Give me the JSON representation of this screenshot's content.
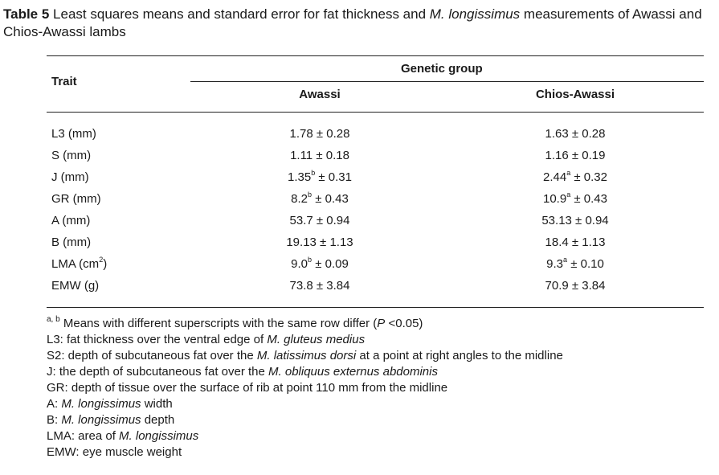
{
  "caption": {
    "label": "Table 5",
    "text_before": " Least squares means and standard error for fat thickness and ",
    "italic": "M. longissimus",
    "text_after": " measurements of Awassi and Chios-Awassi lambs"
  },
  "table": {
    "header_trait": "Trait",
    "header_group": "Genetic group",
    "columns": [
      "Awassi",
      "Chios-Awassi"
    ],
    "rows": [
      {
        "trait": "L3 (mm)",
        "awassi": {
          "mean": "1.78",
          "sup": "",
          "se": " ± 0.28"
        },
        "chios": {
          "mean": "1.63",
          "sup": "",
          "se": " ± 0.28"
        }
      },
      {
        "trait": "S (mm)",
        "awassi": {
          "mean": "1.11",
          "sup": "",
          "se": " ± 0.18"
        },
        "chios": {
          "mean": "1.16",
          "sup": "",
          "se": " ± 0.19"
        }
      },
      {
        "trait": "J (mm)",
        "awassi": {
          "mean": "1.35",
          "sup": "b",
          "se": " ± 0.31"
        },
        "chios": {
          "mean": "2.44",
          "sup": "a",
          "se": " ± 0.32"
        }
      },
      {
        "trait": "GR (mm)",
        "awassi": {
          "mean": "8.2",
          "sup": "b",
          "se": " ± 0.43"
        },
        "chios": {
          "mean": "10.9",
          "sup": "a",
          "se": " ± 0.43"
        }
      },
      {
        "trait": "A (mm)",
        "awassi": {
          "mean": "53.7",
          "sup": "",
          "se": " ± 0.94"
        },
        "chios": {
          "mean": "53.13",
          "sup": "",
          "se": " ± 0.94"
        }
      },
      {
        "trait": "B (mm)",
        "awassi": {
          "mean": "19.13",
          "sup": "",
          "se": " ± 1.13"
        },
        "chios": {
          "mean": "18.4",
          "sup": "",
          "se": " ± 1.13"
        }
      },
      {
        "trait_pre": "LMA (cm",
        "trait_sup": "2",
        "trait_post": ")",
        "awassi": {
          "mean": "9.0",
          "sup": "b",
          "se": " ± 0.09"
        },
        "chios": {
          "mean": "9.3",
          "sup": "a",
          "se": " ± 0.10"
        }
      },
      {
        "trait": "EMW (g)",
        "awassi": {
          "mean": "73.8",
          "sup": "",
          "se": " ± 3.84"
        },
        "chios": {
          "mean": "70.9",
          "sup": "",
          "se": " ± 3.84"
        }
      }
    ]
  },
  "notes": {
    "sig_sup": "a, b",
    "sig_pre": " Means with different superscripts with the same row differ (",
    "sig_p": "P",
    "sig_post": " <0.05)",
    "l3_pre": "L3: fat thickness over the ventral edge of ",
    "l3_it": "M. gluteus medius",
    "s2_pre": "S2: depth of subcutaneous fat over the ",
    "s2_it": "M. latissimus dorsi",
    "s2_post": " at a point at right angles to the midline",
    "j_pre": "J: the depth of subcutaneous fat over the ",
    "j_it": "M. obliquus externus abdominis",
    "gr": "GR: depth of tissue over the surface of rib at point 110 mm from the midline",
    "a_pre": "A: ",
    "a_it": "M. longissimus",
    "a_post": " width",
    "b_pre": "B: ",
    "b_it": "M. longissimus",
    "b_post": " depth",
    "lma_pre": "LMA: area of ",
    "lma_it": "M. longissimus",
    "emw": "EMW: eye muscle weight"
  }
}
